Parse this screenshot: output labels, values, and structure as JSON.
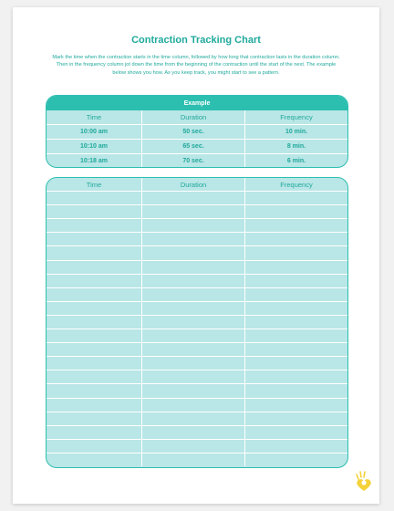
{
  "document": {
    "title": "Contraction Tracking Chart",
    "intro": "Mark the time when the contraction starts in the time column, followed by how long that contraction lasts in the duration column. Then in the frequency column jot down the time from the beginning of the contraction until the start of the next. The example below shows you how. As you keep track, you might start to see a pattern."
  },
  "example_table": {
    "banner": "Example",
    "headers": [
      "Time",
      "Duration",
      "Frequency"
    ],
    "rows": [
      [
        "10:00 am",
        "50 sec.",
        "10 min."
      ],
      [
        "10:10 am",
        "65 sec.",
        "8 min."
      ],
      [
        "10:18 am",
        "70 sec.",
        "6 min."
      ]
    ]
  },
  "tracking_table": {
    "headers": [
      "Time",
      "Duration",
      "Frequency"
    ],
    "empty_row_count": 20
  },
  "colors": {
    "accent": "#2cbfb0",
    "cell_fill": "#b9e6e6",
    "text": "#1fa99c",
    "logo": "#f4d23a"
  },
  "icons": {
    "brand_logo": "baby-heart-logo-icon"
  }
}
